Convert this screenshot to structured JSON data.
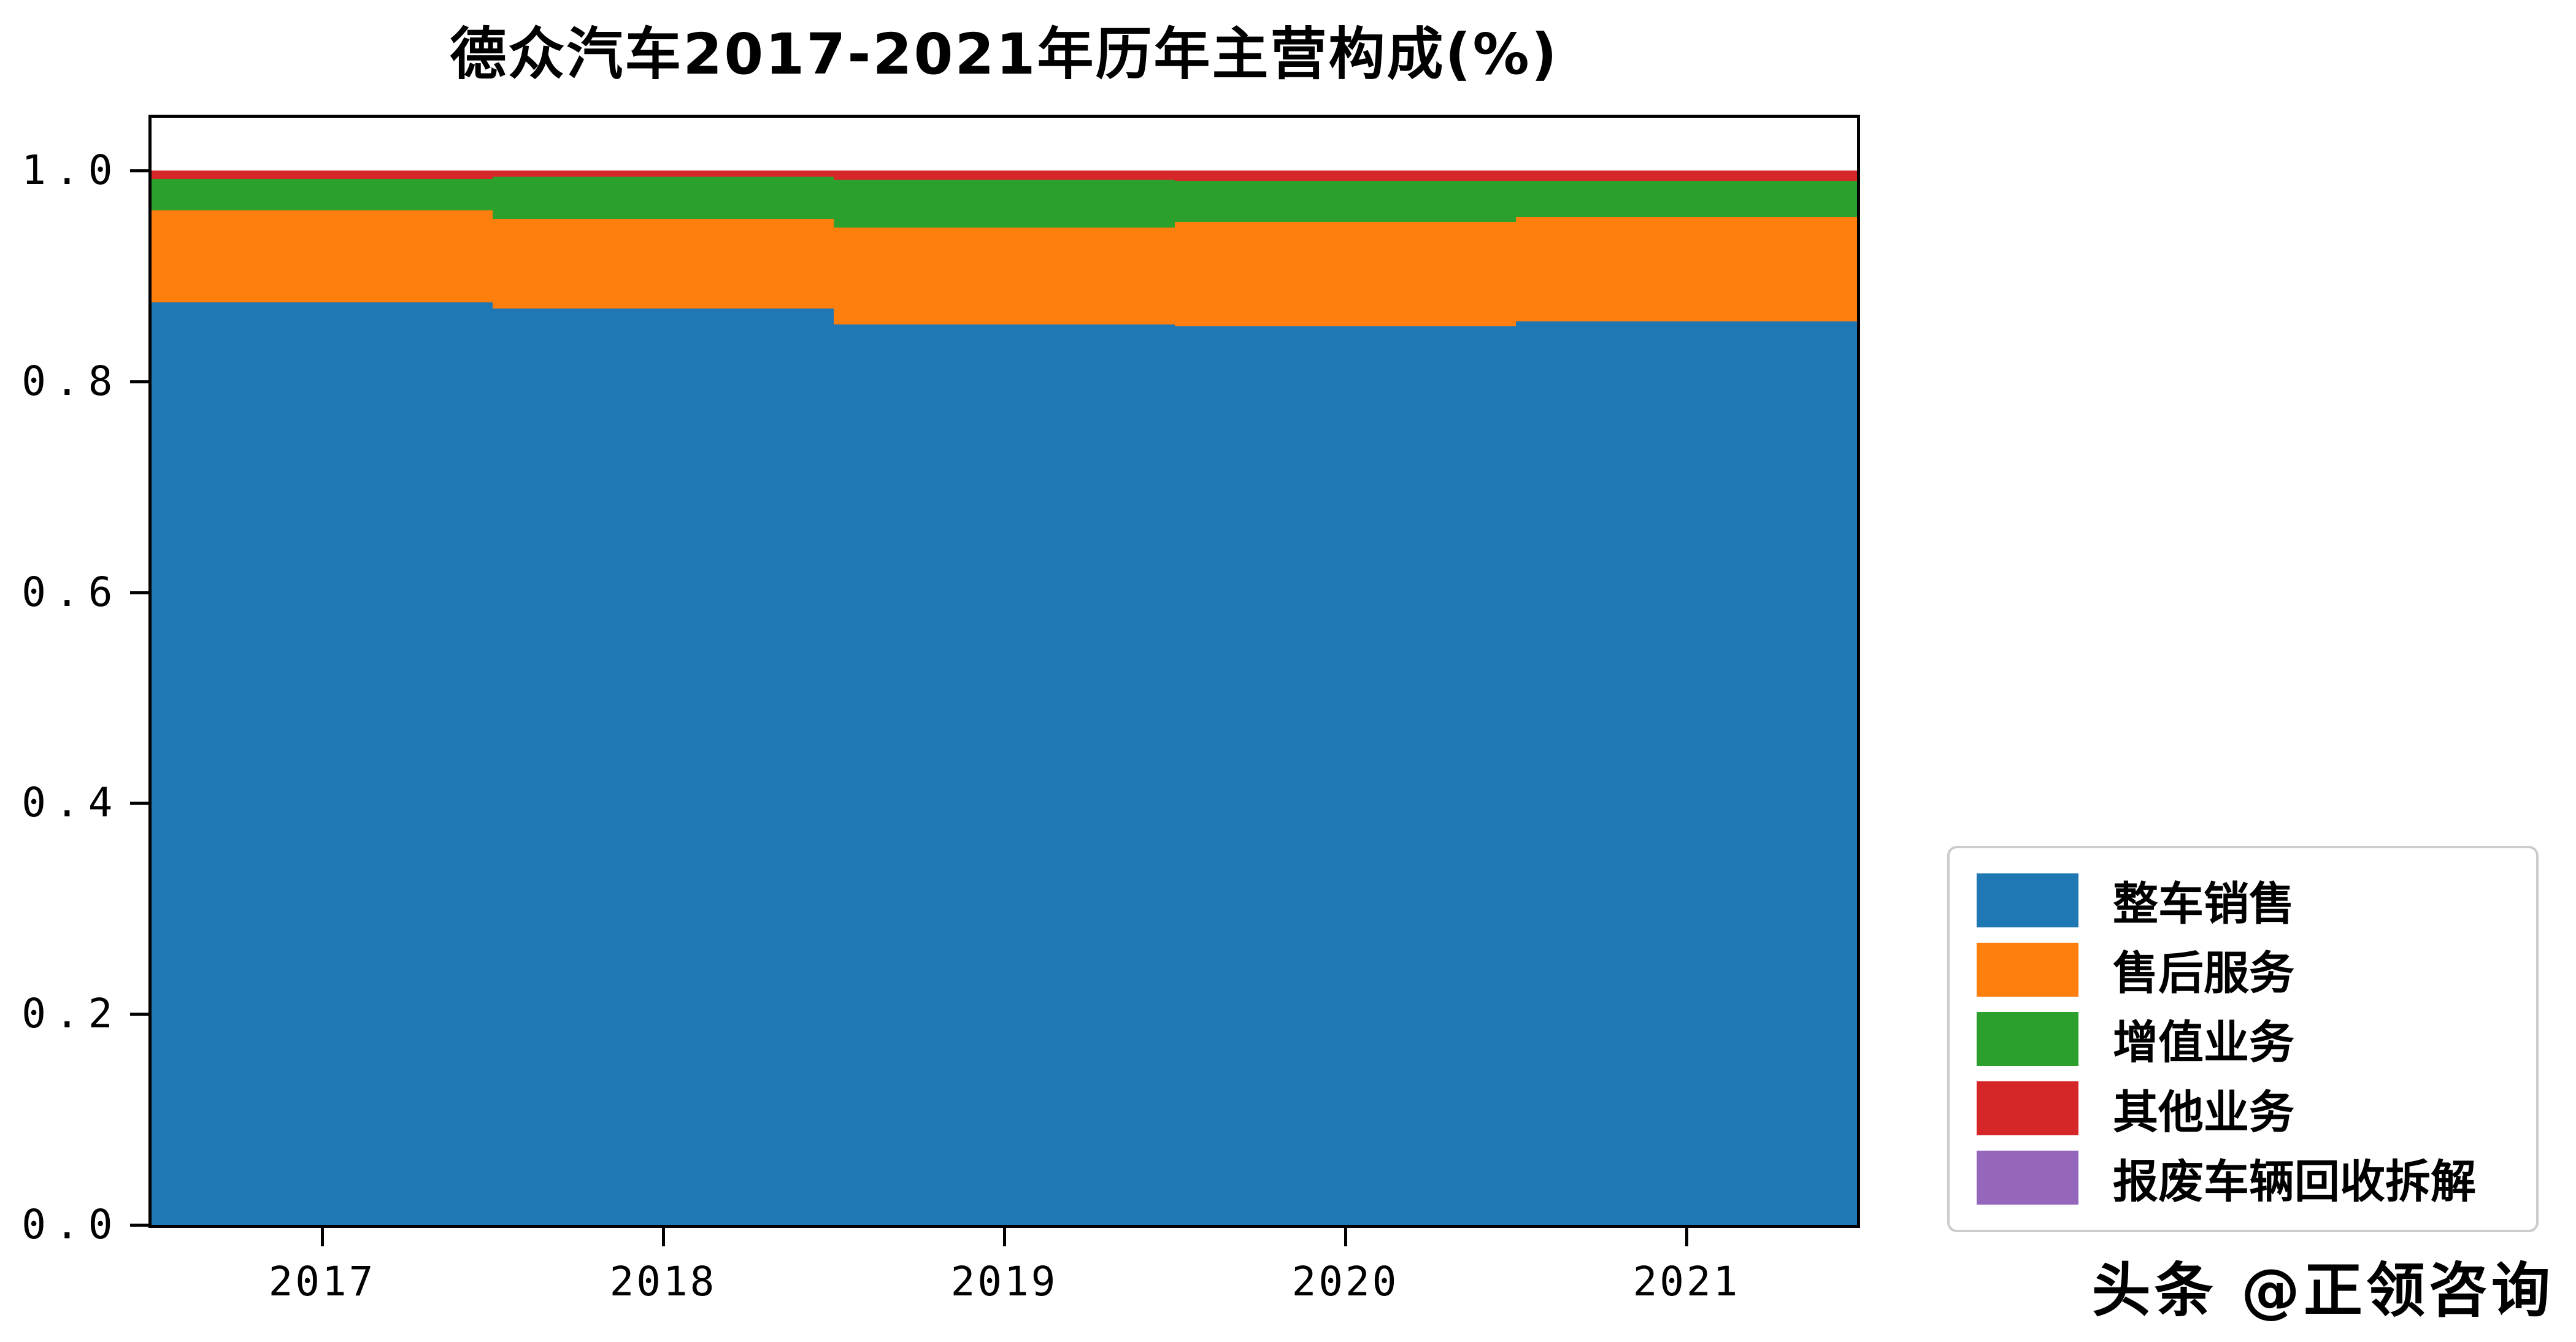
{
  "figure": {
    "watermark": "头条 @正领咨询"
  },
  "chart_data": {
    "type": "bar",
    "stacked": true,
    "title": "德众汽车2017-2021年历年主营构成(%)",
    "xlabel": "",
    "ylabel": "",
    "categories": [
      "2017",
      "2018",
      "2019",
      "2020",
      "2021"
    ],
    "series": [
      {
        "name": "整车销售",
        "color": "#1f77b4",
        "values": [
          0.875,
          0.869,
          0.854,
          0.852,
          0.857
        ]
      },
      {
        "name": "售后服务",
        "color": "#ff7f0e",
        "values": [
          0.087,
          0.085,
          0.092,
          0.099,
          0.099
        ]
      },
      {
        "name": "增值业务",
        "color": "#2ca02c",
        "values": [
          0.03,
          0.04,
          0.045,
          0.039,
          0.034
        ]
      },
      {
        "name": "其他业务",
        "color": "#d62728",
        "values": [
          0.008,
          0.006,
          0.009,
          0.01,
          0.01
        ]
      },
      {
        "name": "报废车辆回收拆解",
        "color": "#9467bd",
        "values": [
          0.0,
          0.0,
          0.0,
          0.0,
          0.0
        ]
      }
    ],
    "ylim": [
      0,
      1.05
    ],
    "yticks": [
      {
        "value": 0.0,
        "label": "0.0"
      },
      {
        "value": 0.2,
        "label": "0.2"
      },
      {
        "value": 0.4,
        "label": "0.4"
      },
      {
        "value": 0.6,
        "label": "0.6"
      },
      {
        "value": 0.8,
        "label": "0.8"
      },
      {
        "value": 1.0,
        "label": "1.0"
      }
    ],
    "grid": false,
    "legend_position": "lower-right-outside",
    "bar_width_fraction": 0.5
  }
}
